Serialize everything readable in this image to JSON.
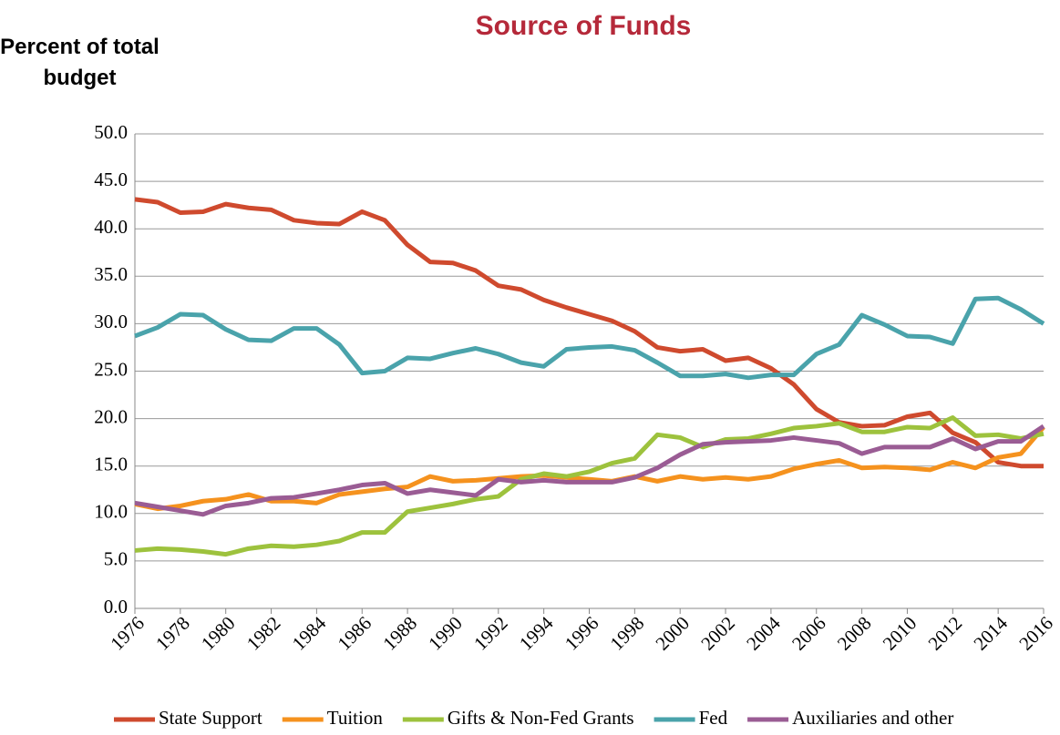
{
  "chart_data": {
    "type": "line",
    "title": "Source of Funds",
    "y_label": "Percent of total budget",
    "xlim": [
      1976,
      2016
    ],
    "xticks": [
      1976,
      1978,
      1980,
      1982,
      1984,
      1986,
      1988,
      1990,
      1992,
      1994,
      1996,
      1998,
      2000,
      2002,
      2004,
      2006,
      2008,
      2010,
      2012,
      2014,
      2016
    ],
    "ylim": [
      0,
      50
    ],
    "yticks": [
      {
        "value": 0,
        "label": "0.0"
      },
      {
        "value": 5,
        "label": "5.0"
      },
      {
        "value": 10,
        "label": "10.0"
      },
      {
        "value": 15,
        "label": "15.0"
      },
      {
        "value": 20,
        "label": "20.0"
      },
      {
        "value": 25,
        "label": "25.0"
      },
      {
        "value": 30,
        "label": "30.0"
      },
      {
        "value": 35,
        "label": "35.0"
      },
      {
        "value": 40,
        "label": "40.0"
      },
      {
        "value": 45,
        "label": "45.0"
      },
      {
        "value": 50,
        "label": "50.0"
      }
    ],
    "grid": true,
    "legend": "bottom",
    "x": [
      1976,
      1977,
      1978,
      1979,
      1980,
      1981,
      1982,
      1983,
      1984,
      1985,
      1986,
      1987,
      1988,
      1989,
      1990,
      1991,
      1992,
      1993,
      1994,
      1995,
      1996,
      1997,
      1998,
      1999,
      2000,
      2001,
      2002,
      2003,
      2004,
      2005,
      2006,
      2007,
      2008,
      2009,
      2010,
      2011,
      2012,
      2013,
      2014,
      2015,
      2016
    ],
    "series": [
      {
        "name": "State Support",
        "color": "#cf4a2e",
        "values": [
          43.1,
          42.8,
          41.7,
          41.8,
          42.6,
          42.2,
          42.0,
          40.9,
          40.6,
          40.5,
          41.8,
          40.9,
          38.3,
          36.5,
          36.4,
          35.6,
          34.0,
          33.6,
          32.5,
          31.7,
          31.0,
          30.3,
          29.2,
          27.5,
          27.1,
          27.3,
          26.1,
          26.4,
          25.3,
          23.6,
          21.0,
          19.6,
          19.2,
          19.3,
          20.2,
          20.6,
          18.5,
          17.5,
          15.4,
          15.0,
          15.0
        ]
      },
      {
        "name": "Tuition",
        "color": "#f5921e",
        "values": [
          11.0,
          10.5,
          10.8,
          11.3,
          11.5,
          12.0,
          11.3,
          11.3,
          11.1,
          12.0,
          12.3,
          12.6,
          12.8,
          13.9,
          13.4,
          13.5,
          13.7,
          13.9,
          14.0,
          13.8,
          13.6,
          13.4,
          13.9,
          13.4,
          13.9,
          13.6,
          13.8,
          13.6,
          13.9,
          14.7,
          15.2,
          15.6,
          14.8,
          14.9,
          14.8,
          14.6,
          15.4,
          14.8,
          15.9,
          16.3,
          19.1
        ]
      },
      {
        "name": "Gifts & Non-Fed Grants",
        "color": "#9dc23d",
        "values": [
          6.1,
          6.3,
          6.2,
          6.0,
          5.7,
          6.3,
          6.6,
          6.5,
          6.7,
          7.1,
          8.0,
          8.0,
          10.2,
          10.6,
          11.0,
          11.5,
          11.8,
          13.6,
          14.2,
          13.9,
          14.4,
          15.3,
          15.8,
          18.3,
          18.0,
          17.0,
          17.8,
          17.9,
          18.4,
          19.0,
          19.2,
          19.5,
          18.6,
          18.6,
          19.1,
          19.0,
          20.1,
          18.2,
          18.3,
          17.9,
          18.4
        ]
      },
      {
        "name": "Fed",
        "color": "#4aa3ab",
        "values": [
          28.7,
          29.6,
          31.0,
          30.9,
          29.4,
          28.3,
          28.2,
          29.5,
          29.5,
          27.8,
          24.8,
          25.0,
          26.4,
          26.3,
          26.9,
          27.4,
          26.8,
          25.9,
          25.5,
          27.3,
          27.5,
          27.6,
          27.2,
          25.9,
          24.5,
          24.5,
          24.7,
          24.3,
          24.6,
          24.6,
          26.8,
          27.8,
          30.9,
          29.9,
          28.7,
          28.6,
          27.9,
          32.6,
          32.7,
          31.5,
          30.0
        ]
      },
      {
        "name": "Auxiliaries and other",
        "color": "#9a5c94",
        "values": [
          11.1,
          10.7,
          10.3,
          9.9,
          10.8,
          11.1,
          11.6,
          11.7,
          12.1,
          12.5,
          13.0,
          13.2,
          12.1,
          12.5,
          12.2,
          11.9,
          13.6,
          13.3,
          13.5,
          13.3,
          13.3,
          13.3,
          13.8,
          14.8,
          16.2,
          17.3,
          17.5,
          17.6,
          17.7,
          18.0,
          17.7,
          17.4,
          16.3,
          17.0,
          17.0,
          17.0,
          17.9,
          16.8,
          17.6,
          17.6,
          19.2
        ]
      }
    ]
  }
}
